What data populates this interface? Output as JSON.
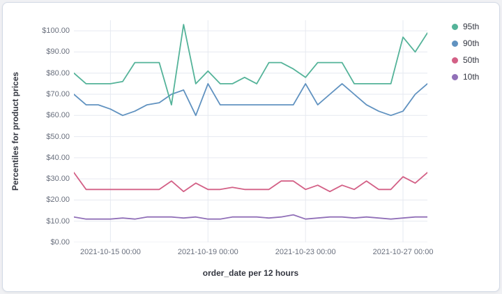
{
  "page": {
    "background": "#f0f1f4",
    "card_background": "#ffffff",
    "card_border": "#d3dae6"
  },
  "chart_data": {
    "type": "line",
    "title": "",
    "ylabel": "Percentiles for product prices",
    "xlabel": "order_date per 12 hours",
    "ylim": [
      0,
      105
    ],
    "x_count": 30,
    "x_interval": "12 hours",
    "grid": true,
    "legend_position": "right",
    "colors": {
      "grid": "#e6e9f0",
      "tick_text": "#696f7d",
      "axis_title_text": "#343741"
    },
    "y_ticks": [
      {
        "value": 0,
        "label": "$0.00"
      },
      {
        "value": 10,
        "label": "$10.00"
      },
      {
        "value": 20,
        "label": "$20.00"
      },
      {
        "value": 30,
        "label": "$30.00"
      },
      {
        "value": 40,
        "label": "$40.00"
      },
      {
        "value": 50,
        "label": "$50.00"
      },
      {
        "value": 60,
        "label": "$60.00"
      },
      {
        "value": 70,
        "label": "$70.00"
      },
      {
        "value": 80,
        "label": "$80.00"
      },
      {
        "value": 90,
        "label": "$90.00"
      },
      {
        "value": 100,
        "label": "$100.00"
      }
    ],
    "x_ticks": [
      {
        "index": 3,
        "label": "2021-10-15 00:00"
      },
      {
        "index": 11,
        "label": "2021-10-19 00:00"
      },
      {
        "index": 19,
        "label": "2021-10-23 00:00"
      },
      {
        "index": 27,
        "label": "2021-10-27 00:00"
      }
    ],
    "series": [
      {
        "name": "95th",
        "color": "#54b399",
        "values": [
          80,
          75,
          75,
          75,
          76,
          85,
          85,
          85,
          65,
          103,
          75,
          81,
          75,
          75,
          78,
          75,
          85,
          85,
          82,
          78,
          85,
          85,
          85,
          75,
          75,
          75,
          75,
          97,
          90,
          99
        ]
      },
      {
        "name": "90th",
        "color": "#6092c0",
        "values": [
          70,
          65,
          65,
          63,
          60,
          62,
          65,
          66,
          70,
          72,
          60,
          75,
          65,
          65,
          65,
          65,
          65,
          65,
          65,
          75,
          65,
          70,
          75,
          70,
          65,
          62,
          60,
          62,
          70,
          75
        ]
      },
      {
        "name": "50th",
        "color": "#d36086",
        "values": [
          33,
          25,
          25,
          25,
          25,
          25,
          25,
          25,
          29,
          24,
          28,
          25,
          25,
          26,
          25,
          25,
          25,
          29,
          29,
          25,
          27,
          24,
          27,
          25,
          29,
          25,
          25,
          31,
          28,
          33
        ]
      },
      {
        "name": "10th",
        "color": "#9170b8",
        "values": [
          12,
          11,
          11,
          11,
          11.5,
          11,
          12,
          12,
          12,
          11.5,
          12,
          11,
          11,
          12,
          12,
          12,
          11.5,
          12,
          13,
          11,
          11.5,
          12,
          12,
          11.5,
          12,
          11.5,
          11,
          11.5,
          12,
          12
        ]
      }
    ]
  }
}
